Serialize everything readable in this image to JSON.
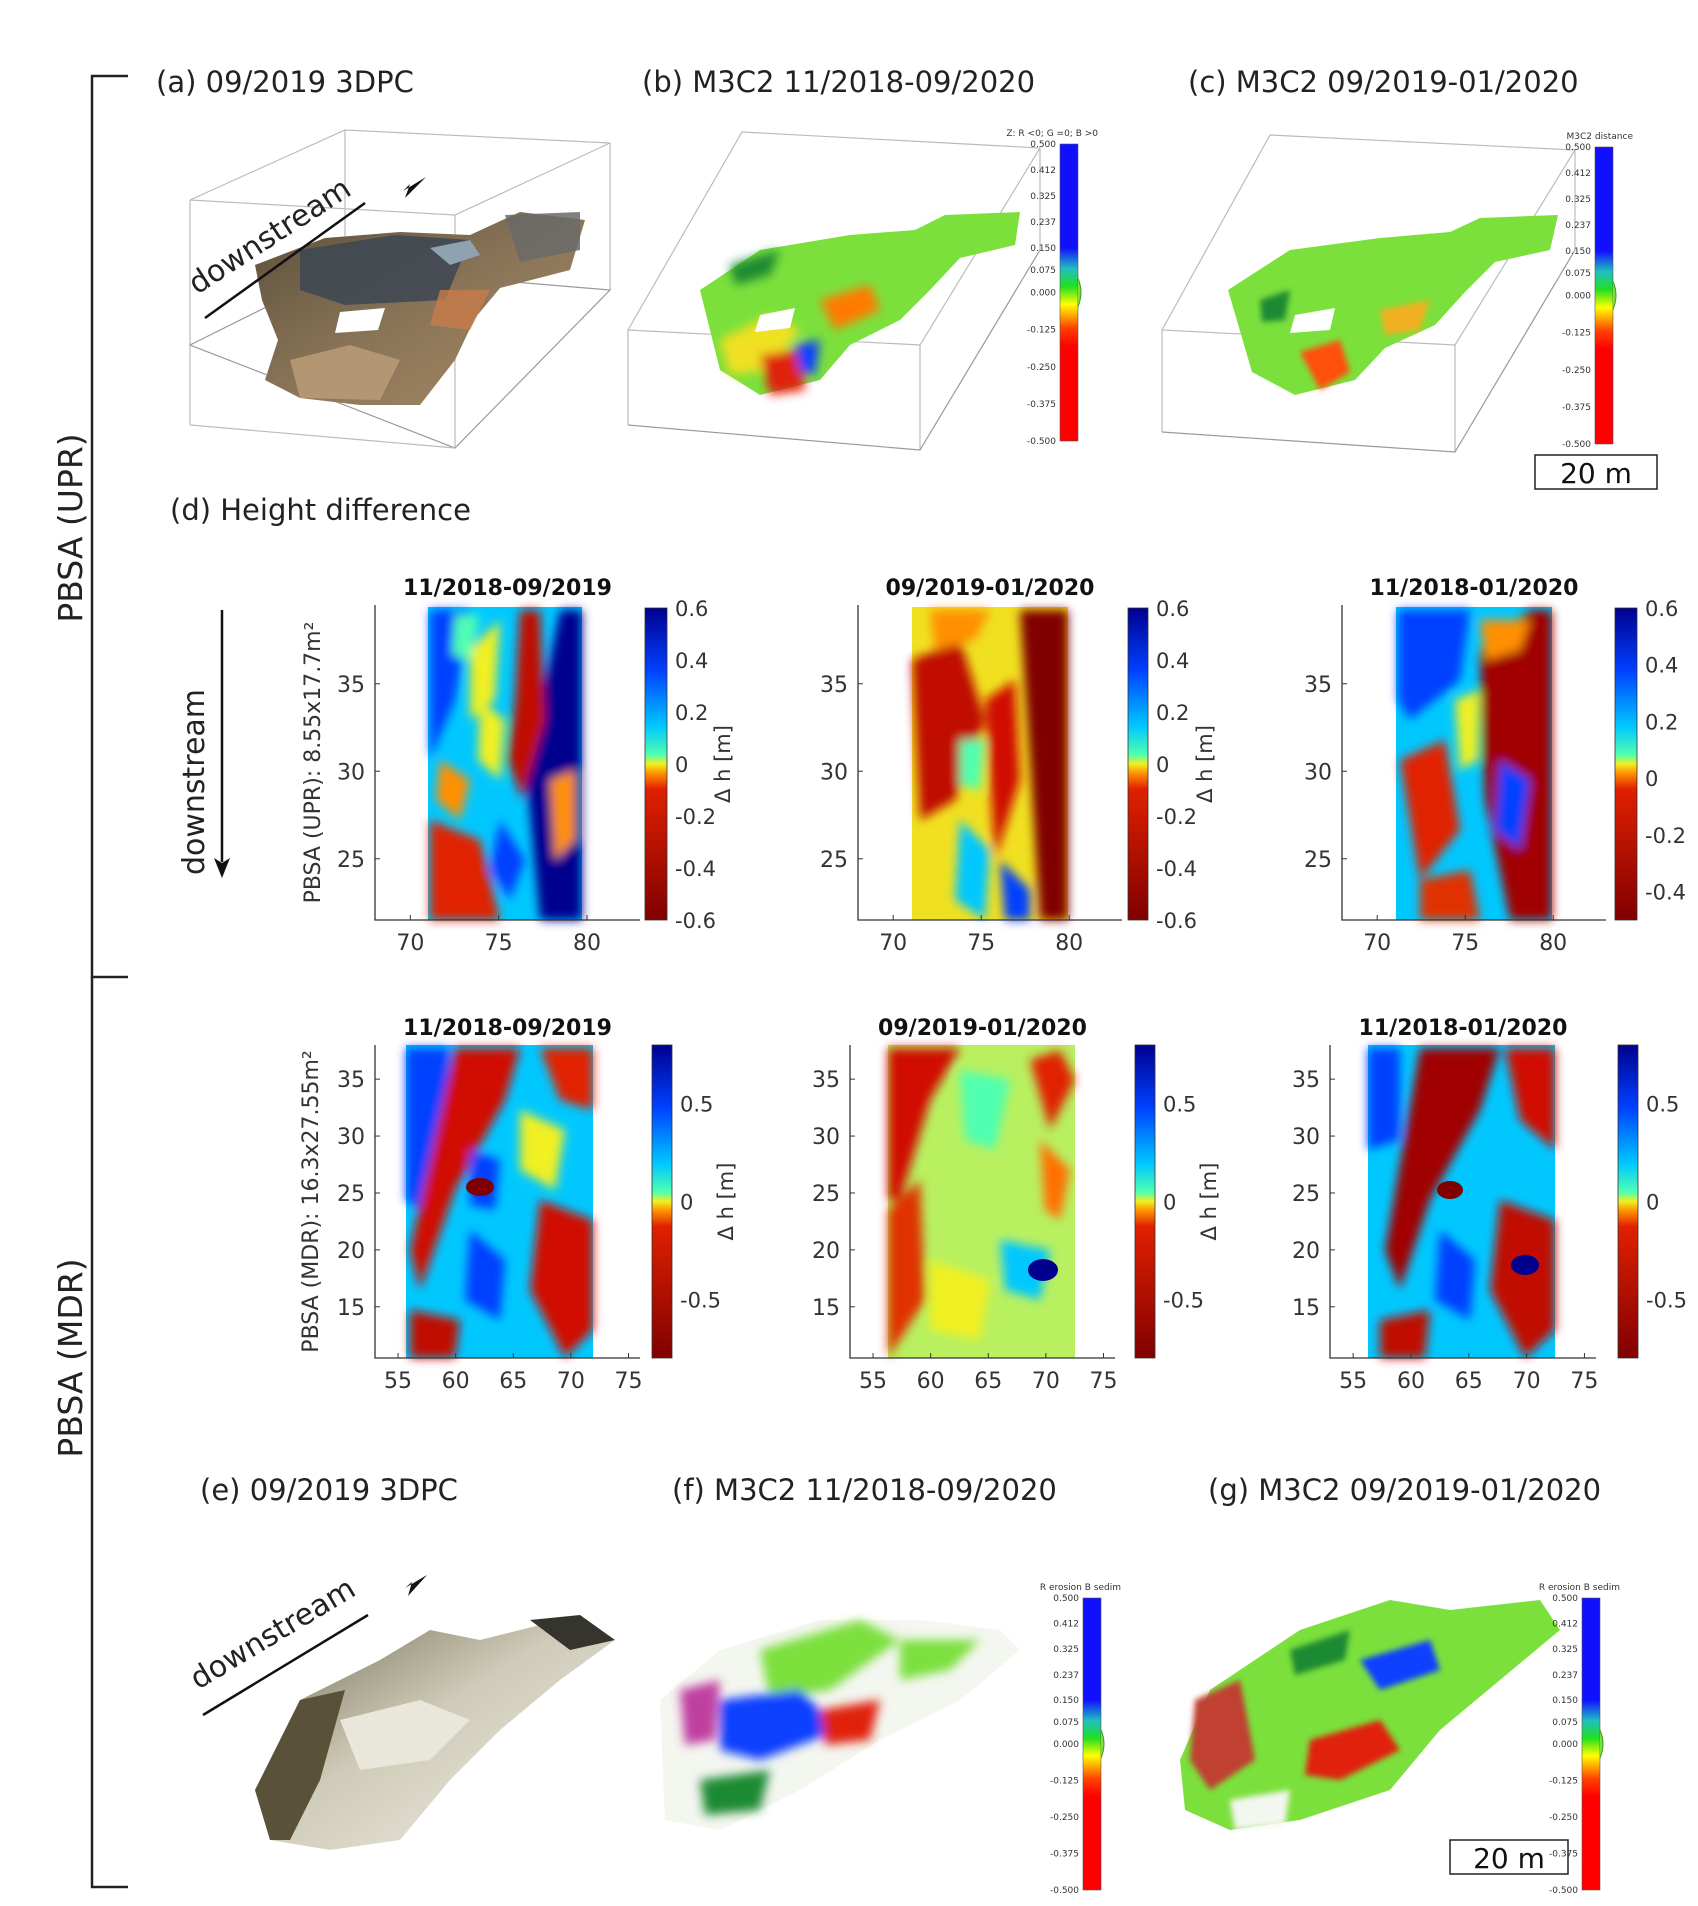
{
  "figure": {
    "side_labels": {
      "upper": "PBSA (UPR)",
      "lower": "PBSA (MDR)"
    },
    "panel_labels": {
      "a": "(a) 09/2019 3DPC",
      "b": "(b) M3C2 11/2018-09/2020",
      "c": "(c) M3C2 09/2019-01/2020",
      "d": "(d) Height difference",
      "e": "(e) 09/2019 3DPC",
      "f": "(f) M3C2 11/2018-09/2020",
      "g": "(g) M3C2 09/2019-01/2020"
    },
    "downstream_label": "downstream",
    "scale_bar_label": "20 m",
    "m3c2_colorbars": {
      "b_title": "Z: R <0; G =0; B >0",
      "c_title": "M3C2 distance",
      "f_title": "R erosion B sedim",
      "g_title": "R erosion B sedim",
      "ticks": [
        "0.500",
        "0.412",
        "0.325",
        "0.237",
        "0.150",
        "0.075",
        "0.000",
        "-0.125",
        "-0.250",
        "-0.375",
        "-0.500"
      ]
    },
    "colors": {
      "dark_blue": "#00008f",
      "blue": "#0050ff",
      "cyan": "#00e0ff",
      "yellow": "#f0f020",
      "orange": "#ff8000",
      "red": "#d01000",
      "dark_red": "#800000",
      "green": "#7be03c"
    }
  },
  "chart_data": [
    {
      "type": "heatmap",
      "id": "upr-1",
      "title": "11/2018-09/2019",
      "ylabel": "PBSA (UPR): 8.55x17.7m²",
      "xticks": [
        "70",
        "75",
        "80"
      ],
      "yticks": [
        "25",
        "30",
        "35"
      ],
      "xlim": [
        68,
        83
      ],
      "ylim": [
        21.5,
        39.5
      ],
      "colorbar_label": "Δ h [m]",
      "colorbar_ticks": [
        "0.6",
        "0.4",
        "0.2",
        "0",
        "-0.2",
        "-0.4",
        "-0.6"
      ],
      "colorbar_range": [
        -0.6,
        0.6
      ]
    },
    {
      "type": "heatmap",
      "id": "upr-2",
      "title": "09/2019-01/2020",
      "xticks": [
        "70",
        "75",
        "80"
      ],
      "yticks": [
        "25",
        "30",
        "35"
      ],
      "xlim": [
        68,
        83
      ],
      "ylim": [
        21.5,
        39.5
      ],
      "colorbar_label": "Δ h [m]",
      "colorbar_ticks": [
        "0.6",
        "0.4",
        "0.2",
        "0",
        "-0.2",
        "-0.4",
        "-0.6"
      ],
      "colorbar_range": [
        -0.6,
        0.6
      ]
    },
    {
      "type": "heatmap",
      "id": "upr-3",
      "title": "11/2018-01/2020",
      "xticks": [
        "70",
        "75",
        "80"
      ],
      "yticks": [
        "25",
        "30",
        "35"
      ],
      "xlim": [
        68,
        83
      ],
      "ylim": [
        21.5,
        39.5
      ],
      "colorbar_ticks": [
        "0.6",
        "0.4",
        "0.2",
        "0",
        "-0.2",
        "-0.4"
      ],
      "colorbar_range": [
        -0.5,
        0.6
      ]
    },
    {
      "type": "heatmap",
      "id": "mdr-1",
      "title": "11/2018-09/2019",
      "ylabel": "PBSA (MDR): 16.3x27.55m²",
      "xticks": [
        "55",
        "60",
        "65",
        "70",
        "75"
      ],
      "yticks": [
        "15",
        "20",
        "25",
        "30",
        "35"
      ],
      "xlim": [
        53,
        76
      ],
      "ylim": [
        10.5,
        38
      ],
      "colorbar_label": "Δ h [m]",
      "colorbar_ticks": [
        "0.5",
        "0",
        "-0.5"
      ],
      "colorbar_range": [
        -0.8,
        0.8
      ]
    },
    {
      "type": "heatmap",
      "id": "mdr-2",
      "title": "09/2019-01/2020",
      "xticks": [
        "55",
        "60",
        "65",
        "70",
        "75"
      ],
      "yticks": [
        "15",
        "20",
        "25",
        "30",
        "35"
      ],
      "xlim": [
        53,
        76
      ],
      "ylim": [
        10.5,
        38
      ],
      "colorbar_label": "Δ h [m]",
      "colorbar_ticks": [
        "0.5",
        "0",
        "-0.5"
      ],
      "colorbar_range": [
        -0.8,
        0.8
      ]
    },
    {
      "type": "heatmap",
      "id": "mdr-3",
      "title": "11/2018-01/2020",
      "xticks": [
        "55",
        "60",
        "65",
        "70",
        "75"
      ],
      "yticks": [
        "15",
        "20",
        "25",
        "30",
        "35"
      ],
      "xlim": [
        53,
        76
      ],
      "ylim": [
        10.5,
        38
      ],
      "colorbar_ticks": [
        "0.5",
        "0",
        "-0.5"
      ],
      "colorbar_range": [
        -0.8,
        0.8
      ]
    }
  ]
}
